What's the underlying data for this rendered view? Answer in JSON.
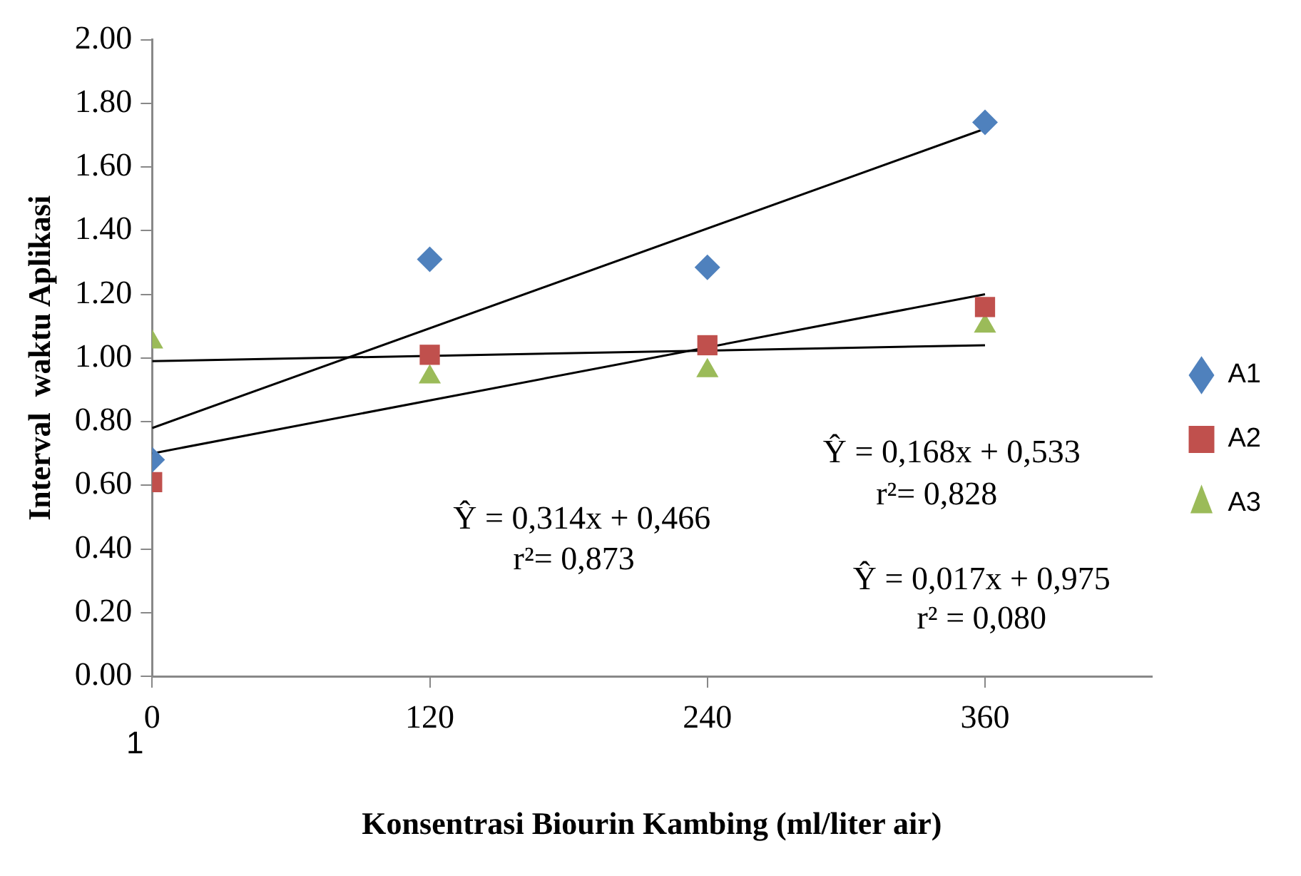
{
  "chart_data": {
    "type": "scatter",
    "xlabel": "Konsentrasi Biourin Kambing (ml/liter air)",
    "ylabel": "Interval  waktu Aplikasi",
    "categories": [
      "0",
      "120",
      "240",
      "360"
    ],
    "ylim": [
      0,
      2
    ],
    "yticks": [
      {
        "value": 0,
        "label": "0.00"
      },
      {
        "value": 0.2,
        "label": "0.20"
      },
      {
        "value": 0.4,
        "label": "0.40"
      },
      {
        "value": 0.6,
        "label": "0.60"
      },
      {
        "value": 0.8,
        "label": "0.80"
      },
      {
        "value": 1,
        "label": "1.00"
      },
      {
        "value": 1.2,
        "label": "1.20"
      },
      {
        "value": 1.4,
        "label": "1.40"
      },
      {
        "value": 1.6,
        "label": "1.60"
      },
      {
        "value": 1.8,
        "label": "1.80"
      },
      {
        "value": 2,
        "label": "2.00"
      }
    ],
    "grid": false,
    "legend": "right",
    "series": [
      {
        "name": "A1",
        "color": "#4f81bd",
        "marker": "diamond",
        "values": [
          0.68,
          1.31,
          1.285,
          1.74
        ]
      },
      {
        "name": "A2",
        "color": "#c0504d",
        "marker": "square",
        "values": [
          0.61,
          1.01,
          1.04,
          1.16
        ]
      },
      {
        "name": "A3",
        "color": "#9bbb59",
        "marker": "triangle",
        "values": [
          1.05,
          0.94,
          0.96,
          1.1
        ]
      },
      {
        "type": "line",
        "color": "#000000",
        "marker": "none",
        "values": [
          0.78,
          null,
          null,
          1.72
        ]
      },
      {
        "type": "line",
        "color": "#000000",
        "marker": "none",
        "values": [
          0.7,
          null,
          null,
          1.2
        ]
      },
      {
        "type": "line",
        "color": "#000000",
        "marker": "none",
        "values": [
          0.99,
          null,
          null,
          1.04
        ]
      }
    ],
    "annotations": [
      "Ŷ = 0,314x + 0,466",
      "r²= 0,873",
      "Ŷ = 0,168x + 0,533",
      "r²= 0,828",
      "Ŷ = 0,017x + 0,975",
      "r² = 0,080",
      "1"
    ]
  }
}
